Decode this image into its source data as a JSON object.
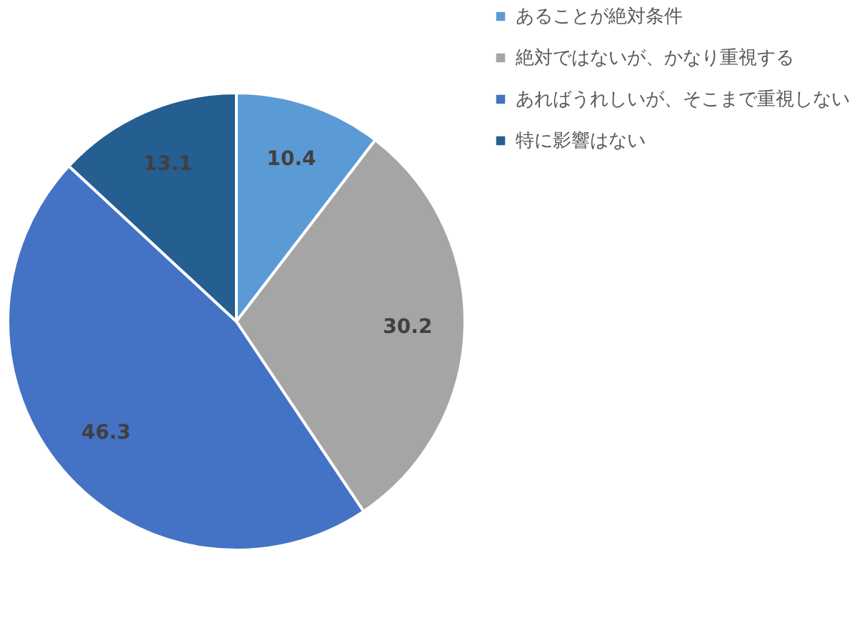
{
  "chart_data": {
    "type": "pie",
    "categories": [
      "あることが絶対条件",
      "絶対ではないが、かなり重視する",
      "あればうれしいが、そこまで重視しない",
      "特に影響はない"
    ],
    "values": [
      10.4,
      30.2,
      46.3,
      13.1
    ],
    "colors": [
      "#5b9bd5",
      "#a5a5a5",
      "#4472c4",
      "#255e91"
    ],
    "data_labels": true,
    "legend": "right"
  }
}
